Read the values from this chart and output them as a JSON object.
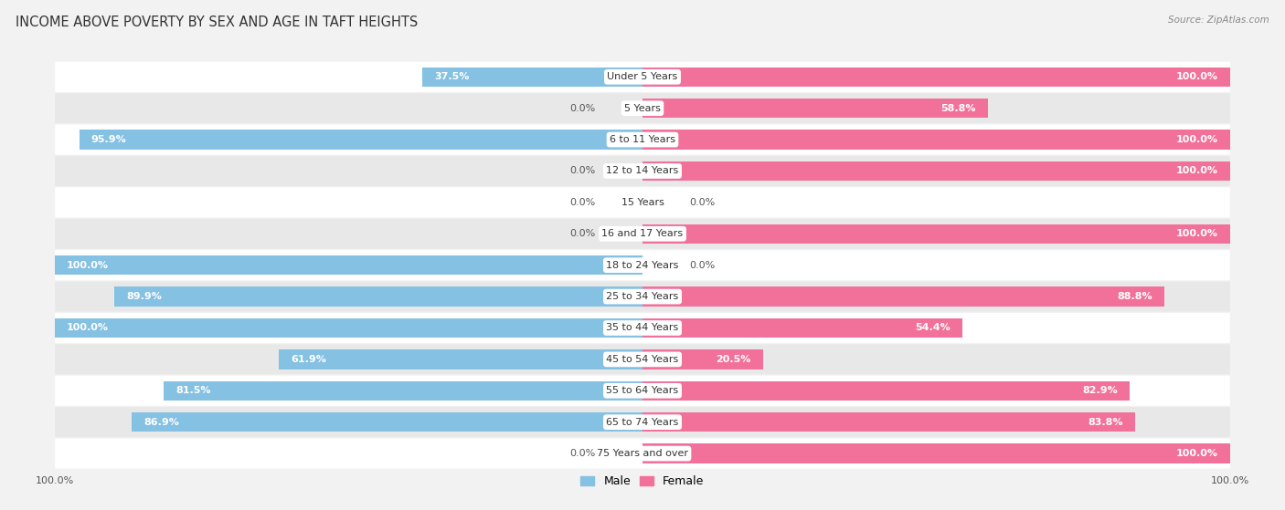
{
  "title": "INCOME ABOVE POVERTY BY SEX AND AGE IN TAFT HEIGHTS",
  "source": "Source: ZipAtlas.com",
  "categories": [
    "Under 5 Years",
    "5 Years",
    "6 to 11 Years",
    "12 to 14 Years",
    "15 Years",
    "16 and 17 Years",
    "18 to 24 Years",
    "25 to 34 Years",
    "35 to 44 Years",
    "45 to 54 Years",
    "55 to 64 Years",
    "65 to 74 Years",
    "75 Years and over"
  ],
  "male": [
    37.5,
    0.0,
    95.9,
    0.0,
    0.0,
    0.0,
    100.0,
    89.9,
    100.0,
    61.9,
    81.5,
    86.9,
    0.0
  ],
  "female": [
    100.0,
    58.8,
    100.0,
    100.0,
    0.0,
    100.0,
    0.0,
    88.8,
    54.4,
    20.5,
    82.9,
    83.8,
    100.0
  ],
  "male_color": "#85c1e2",
  "female_color": "#f1719a",
  "male_label": "Male",
  "female_label": "Female",
  "bg_color": "#f2f2f2",
  "row_even_color": "#ffffff",
  "row_odd_color": "#e8e8e8",
  "max_val": 100.0,
  "title_fontsize": 10.5,
  "label_fontsize": 8.0,
  "value_fontsize": 8.0,
  "tick_fontsize": 8,
  "legend_fontsize": 9
}
